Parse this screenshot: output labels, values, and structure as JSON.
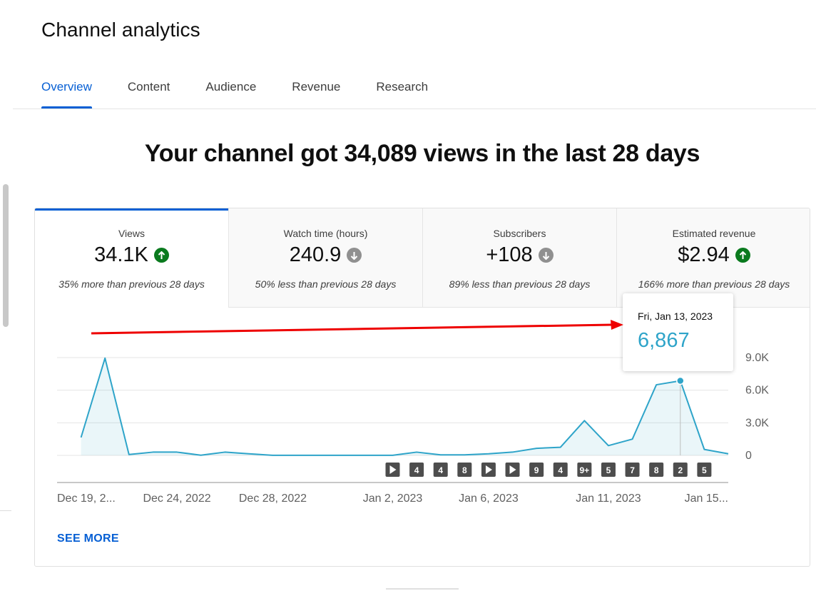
{
  "page": {
    "title": "Channel analytics"
  },
  "tabs": [
    {
      "label": "Overview",
      "active": true
    },
    {
      "label": "Content",
      "active": false
    },
    {
      "label": "Audience",
      "active": false
    },
    {
      "label": "Revenue",
      "active": false
    },
    {
      "label": "Research",
      "active": false
    }
  ],
  "headline": "Your channel got 34,089 views in the last 28 days",
  "metrics": [
    {
      "label": "Views",
      "value": "34.1K",
      "trend": "up",
      "icon": "arrow-up-icon",
      "comparison": "35% more than previous 28 days"
    },
    {
      "label": "Watch time (hours)",
      "value": "240.9",
      "trend": "down",
      "icon": "arrow-down-icon",
      "comparison": "50% less than previous 28 days"
    },
    {
      "label": "Subscribers",
      "value": "+108",
      "trend": "down",
      "icon": "arrow-down-icon",
      "comparison": "89% less than previous 28 days"
    },
    {
      "label": "Estimated revenue",
      "value": "$2.94",
      "trend": "up",
      "icon": "arrow-up-icon",
      "comparison": "166% more than previous 28 days"
    }
  ],
  "colors": {
    "accent": "#065fd4",
    "line": "#2ea4c9",
    "up": "#0a7a1e",
    "down": "#909090",
    "annotation_arrow": "#ee0000"
  },
  "tooltip": {
    "date": "Fri, Jan 13, 2023",
    "value": "6,867"
  },
  "see_more": "SEE MORE",
  "chart_data": {
    "type": "area",
    "ylim": [
      0,
      9000
    ],
    "y_ticks": [
      "9.0K",
      "6.0K",
      "3.0K",
      "0"
    ],
    "y_tick_values": [
      9000,
      6000,
      3000,
      0
    ],
    "x_tick_labels": [
      "Dec 19, 2...",
      "Dec 24, 2022",
      "Dec 28, 2022",
      "Jan 2, 2023",
      "Jan 6, 2023",
      "Jan 11, 2023",
      "Jan 15..."
    ],
    "x_tick_days": [
      0,
      4,
      8,
      13,
      17,
      22,
      26
    ],
    "x_day_range": [
      -1,
      27
    ],
    "series": [
      {
        "values": [
          1650,
          8950,
          80,
          300,
          300,
          20,
          300,
          150,
          10,
          10,
          10,
          10,
          10,
          10,
          300,
          50,
          50,
          150,
          300,
          650,
          750,
          3200,
          900,
          1500,
          6500,
          6867,
          550,
          150
        ]
      }
    ],
    "highlight_day": 25,
    "video_markers": [
      {
        "day": 13,
        "label": "▶"
      },
      {
        "day": 14,
        "label": "4"
      },
      {
        "day": 15,
        "label": "4"
      },
      {
        "day": 16,
        "label": "8"
      },
      {
        "day": 17,
        "label": "▶"
      },
      {
        "day": 18,
        "label": "▶"
      },
      {
        "day": 19,
        "label": "9"
      },
      {
        "day": 20,
        "label": "4"
      },
      {
        "day": 21,
        "label": "9+"
      },
      {
        "day": 22,
        "label": "5"
      },
      {
        "day": 23,
        "label": "7"
      },
      {
        "day": 24,
        "label": "8"
      },
      {
        "day": 25,
        "label": "2"
      },
      {
        "day": 26,
        "label": "5"
      }
    ]
  }
}
